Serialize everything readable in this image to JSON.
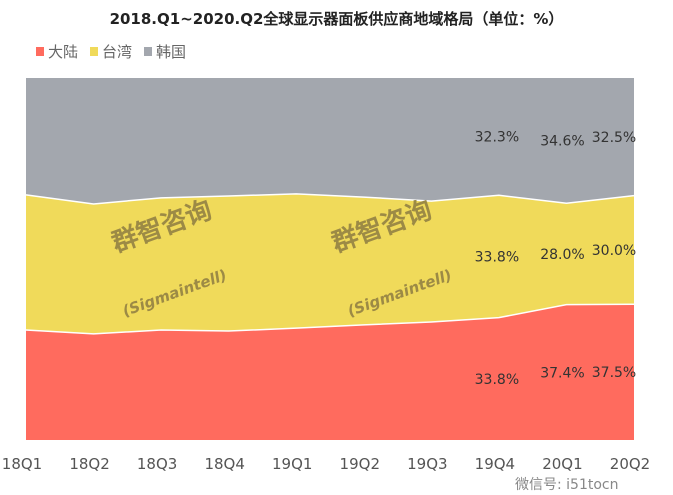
{
  "chart_data": {
    "type": "area",
    "stacked": "percent",
    "title": "2018.Q1~2020.Q2全球显示器面板供应商地域格局（单位：%）",
    "categories": [
      "18Q1",
      "18Q2",
      "18Q3",
      "18Q4",
      "19Q1",
      "19Q2",
      "19Q3",
      "19Q4",
      "20Q1",
      "20Q2"
    ],
    "series": [
      {
        "name": "大陆",
        "color": "#FF6B5E",
        "values": [
          30.4,
          29.3,
          30.4,
          30.1,
          30.9,
          31.8,
          32.6,
          33.8,
          37.4,
          37.5
        ]
      },
      {
        "name": "台湾",
        "color": "#F0DA5A",
        "values": [
          37.3,
          35.9,
          36.5,
          37.3,
          37.1,
          35.3,
          33.4,
          33.8,
          28.0,
          30.0
        ]
      },
      {
        "name": "韩国",
        "color": "#A3A7AE",
        "values": [
          32.3,
          34.8,
          33.1,
          32.6,
          32.0,
          32.9,
          34.0,
          32.3,
          34.6,
          32.5
        ]
      }
    ],
    "data_labels": {
      "大陆": {
        "19Q4": "33.8%",
        "20Q1": "37.4%",
        "20Q2": "37.5%"
      },
      "台湾": {
        "19Q4": "33.8%",
        "20Q1": "28.0%",
        "20Q2": "30.0%"
      },
      "韩国": {
        "19Q4": "32.3%",
        "20Q1": "34.6%",
        "20Q2": "32.5%"
      }
    },
    "ylim": [
      0,
      100
    ],
    "grid": false,
    "legend_position": "top-left"
  },
  "watermark": {
    "cn": "群智咨询",
    "en": "(Sigmaintell)",
    "wechat": "微信号: i51tocn"
  }
}
